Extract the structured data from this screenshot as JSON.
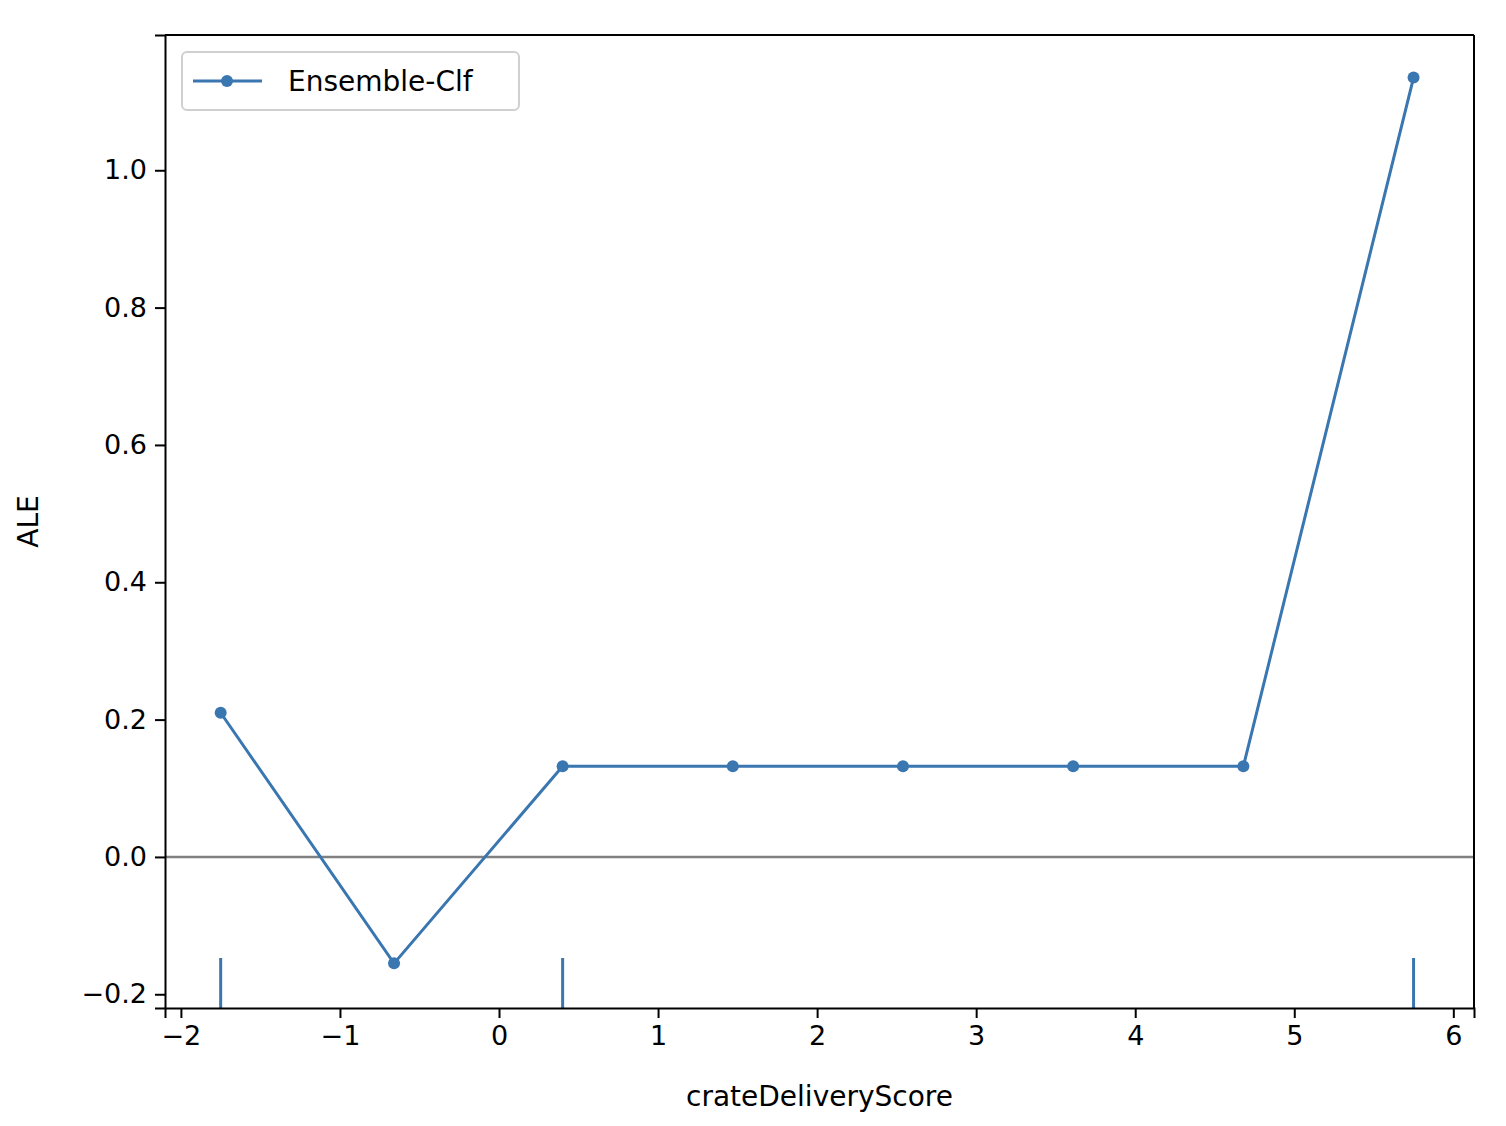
{
  "chart_data": {
    "type": "line",
    "x_label": "crateDeliveryScore",
    "y_label": "ALE",
    "x": [
      -1.75,
      -0.66,
      0.4,
      1.47,
      2.54,
      3.61,
      4.68,
      5.75
    ],
    "series": [
      {
        "name": "Ensemble-Clf",
        "color": "#3a76b0",
        "marker": "circle",
        "values": [
          0.21,
          -0.155,
          0.132,
          0.132,
          0.132,
          0.132,
          0.132,
          1.135
        ]
      }
    ],
    "rug": [
      -1.75,
      0.4,
      5.75
    ],
    "reference_line": 0,
    "xlim": [
      -2.1,
      6.13
    ],
    "ylim": [
      -0.22,
      1.197
    ],
    "xticks": [
      {
        "value": -2,
        "label": "−2"
      },
      {
        "value": -1,
        "label": "−1"
      },
      0,
      1,
      2,
      3,
      4,
      5,
      6
    ],
    "yticks": [
      {
        "value": -0.2,
        "label": "−0.2"
      },
      {
        "value": 0,
        "label": "0.0"
      },
      0.2,
      0.4,
      0.6,
      0.8,
      {
        "value": 1,
        "label": "1.0"
      }
    ],
    "legend": "upper left",
    "grid": false
  }
}
